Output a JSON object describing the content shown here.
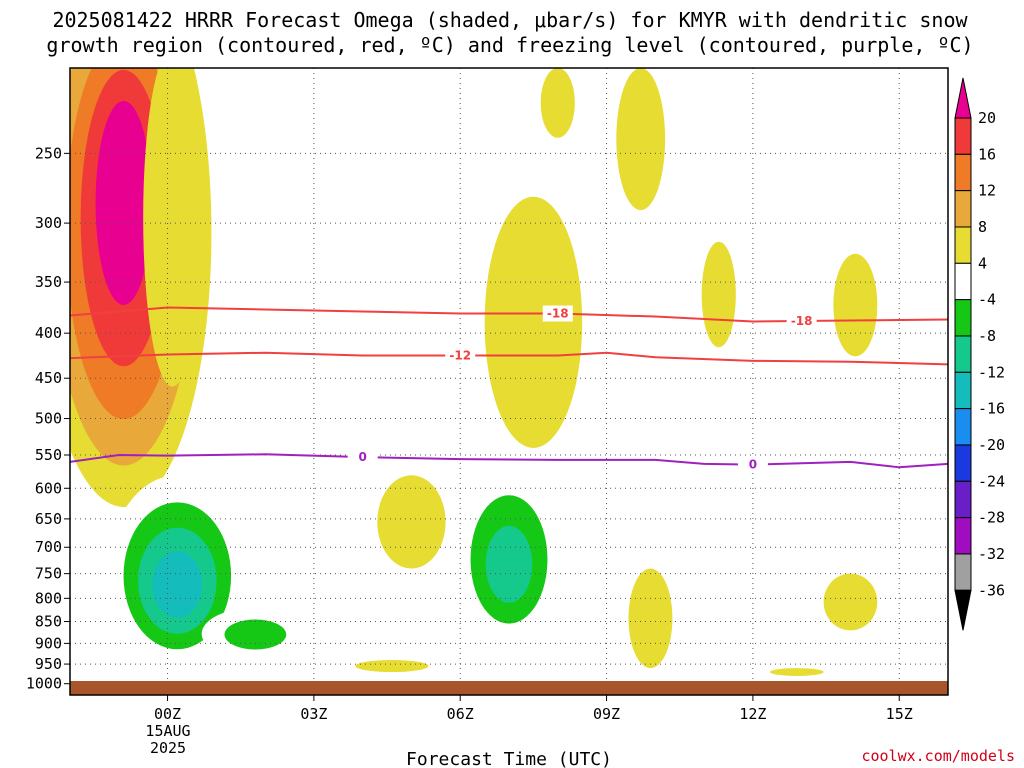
{
  "title_line1": "2025081422 HRRR Forecast Omega (shaded, μbar/s) for KMYR with dendritic snow",
  "title_line2": "growth region (contoured, red, ºC) and freezing level (contoured, purple, ºC)",
  "x_axis_label": "Forecast Time (UTC)",
  "x_date_line1": "15AUG",
  "x_date_line2": "2025",
  "credit": "coolwx.com/models",
  "chart_data": {
    "type": "heatmap",
    "title": "2025081422 HRRR Forecast Omega (shaded, μbar/s) for KMYR with dendritic snow growth region (contoured, red, ºC) and freezing level (contoured, purple, ºC)",
    "xlabel": "Forecast Time (UTC)",
    "ylabel": "",
    "xlim": [
      -2,
      16
    ],
    "ylim": [
      1030,
      200
    ],
    "y_scale": "log-pressure",
    "grid": true,
    "x_ticks": [
      {
        "value": 0,
        "label": "00Z"
      },
      {
        "value": 3,
        "label": "03Z"
      },
      {
        "value": 6,
        "label": "06Z"
      },
      {
        "value": 9,
        "label": "09Z"
      },
      {
        "value": 12,
        "label": "12Z"
      },
      {
        "value": 15,
        "label": "15Z"
      }
    ],
    "y_ticks": [
      250,
      300,
      350,
      400,
      450,
      500,
      550,
      600,
      650,
      700,
      750,
      800,
      850,
      900,
      950,
      1000
    ],
    "colorbar": {
      "labels": [
        20,
        16,
        12,
        8,
        4,
        -4,
        -8,
        -12,
        -16,
        -20,
        -24,
        -28,
        -32,
        -36
      ],
      "colors": [
        "#e80090",
        "#f03a3a",
        "#ef7b26",
        "#e9a93a",
        "#e6dc32",
        "#ffffff",
        "#16c816",
        "#15c88c",
        "#14bcbc",
        "#1a8ef0",
        "#1a3ae0",
        "#6a1ec8",
        "#a00cc0",
        "#a0a0a0"
      ]
    },
    "omega_regions": [
      {
        "t": -0.9,
        "p": 250,
        "dt": 1.8,
        "dp_up": 100,
        "dp_dn": 380,
        "levels": [
          4,
          8,
          12,
          16,
          20
        ]
      },
      {
        "t": 0.1,
        "p": 230,
        "dt": 0.6,
        "dp_up": 40,
        "dp_dn": 230,
        "levels": [
          4
        ]
      },
      {
        "t": 2.5,
        "p": 210,
        "dt": 0.5,
        "dp_up": 20,
        "dp_dn": 30,
        "levels": [
          -4
        ]
      },
      {
        "t": 3.0,
        "p": 540,
        "dt": 0.45,
        "dp_up": 90,
        "dp_dn": 90,
        "levels": [
          -4
        ]
      },
      {
        "t": 5.0,
        "p": 660,
        "dt": 0.7,
        "dp_up": 80,
        "dp_dn": 80,
        "levels": [
          4
        ]
      },
      {
        "t": 7.5,
        "p": 390,
        "dt": 1.0,
        "dp_up": 110,
        "dp_dn": 150,
        "levels": [
          4
        ]
      },
      {
        "t": 7.0,
        "p": 740,
        "dt": 1.1,
        "dp_up": 180,
        "dp_dn": 160,
        "levels": [
          -4,
          -8,
          -12
        ]
      },
      {
        "t": 8.0,
        "p": 210,
        "dt": 0.35,
        "dp_up": 10,
        "dp_dn": 30,
        "levels": [
          4
        ]
      },
      {
        "t": 9.7,
        "p": 230,
        "dt": 0.5,
        "dp_up": 30,
        "dp_dn": 60,
        "levels": [
          4
        ]
      },
      {
        "t": 10.0,
        "p": 505,
        "dt": 0.35,
        "dp_up": 90,
        "dp_dn": 90,
        "levels": [
          -4
        ]
      },
      {
        "t": 11.3,
        "p": 355,
        "dt": 0.35,
        "dp_up": 40,
        "dp_dn": 60,
        "levels": [
          4
        ]
      },
      {
        "t": 14.1,
        "p": 365,
        "dt": 0.45,
        "dp_up": 40,
        "dp_dn": 60,
        "levels": [
          4
        ]
      },
      {
        "t": 9.9,
        "p": 840,
        "dt": 0.45,
        "dp_up": 100,
        "dp_dn": 120,
        "levels": [
          4
        ]
      },
      {
        "t": 14.0,
        "p": 810,
        "dt": 0.55,
        "dp_up": 60,
        "dp_dn": 60,
        "levels": [
          4
        ]
      },
      {
        "t": 14.0,
        "p": 570,
        "dt": 0.2,
        "dp_up": 30,
        "dp_dn": 30,
        "levels": [
          -4
        ]
      },
      {
        "t": 4.6,
        "p": 955,
        "dt": 0.75,
        "dp_up": 15,
        "dp_dn": 15,
        "levels": [
          4
        ]
      },
      {
        "t": 12.9,
        "p": 970,
        "dt": 0.55,
        "dp_up": 10,
        "dp_dn": 10,
        "levels": [
          4
        ]
      },
      {
        "t": 0.2,
        "p": 780,
        "dt": 1.4,
        "dp_up": 200,
        "dp_dn": 170,
        "levels": [
          -4,
          -8,
          -12,
          -16
        ]
      },
      {
        "t": 1.8,
        "p": 880,
        "dt": 1.1,
        "dp_up": 60,
        "dp_dn": 60,
        "levels": [
          -4,
          -8
        ]
      }
    ],
    "contours": [
      {
        "label": "-18",
        "color": "#f04040",
        "label_t": 8.0,
        "points": [
          [
            -2,
            382
          ],
          [
            0,
            374
          ],
          [
            2,
            376
          ],
          [
            4,
            378
          ],
          [
            6,
            380
          ],
          [
            8,
            380
          ],
          [
            10,
            383
          ],
          [
            12,
            388
          ],
          [
            14,
            387
          ],
          [
            16,
            386
          ]
        ]
      },
      {
        "label": "-12",
        "color": "#f04040",
        "label_t": 6.0,
        "points": [
          [
            -2,
            427
          ],
          [
            0,
            423
          ],
          [
            2,
            421
          ],
          [
            4,
            424
          ],
          [
            6,
            424
          ],
          [
            8,
            424
          ],
          [
            9,
            421
          ],
          [
            10,
            426
          ],
          [
            12,
            430
          ],
          [
            14,
            431
          ],
          [
            16,
            434
          ]
        ]
      },
      {
        "label": "0",
        "color": "#a020c0",
        "label_t": 4.0,
        "points": [
          [
            -2,
            560
          ],
          [
            -1,
            550
          ],
          [
            0,
            551
          ],
          [
            2,
            549
          ],
          [
            4,
            553
          ],
          [
            6,
            556
          ],
          [
            8,
            557
          ],
          [
            10,
            557
          ],
          [
            11,
            563
          ],
          [
            12,
            564
          ],
          [
            14,
            560
          ],
          [
            15,
            568
          ],
          [
            16,
            563
          ]
        ]
      }
    ]
  }
}
